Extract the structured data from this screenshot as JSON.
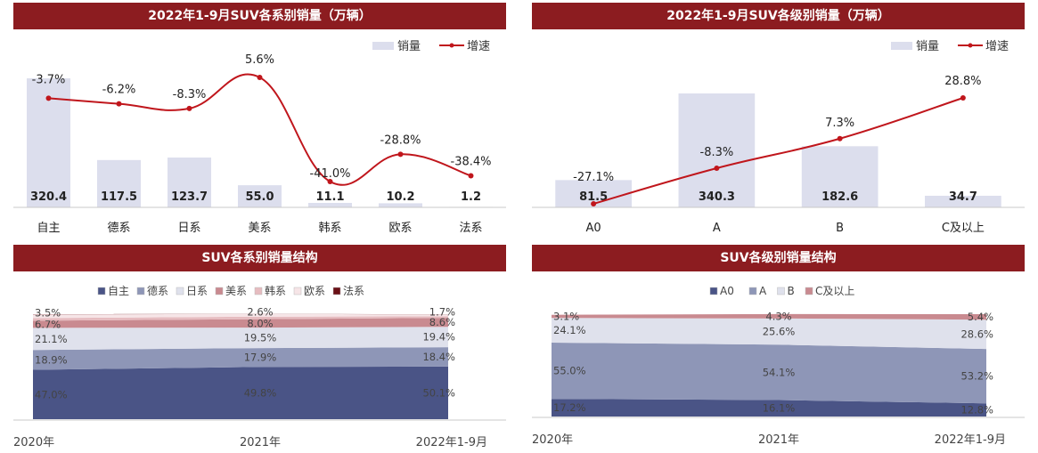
{
  "colors": {
    "header": "#8c1c20",
    "bar": "#dcdeed",
    "line": "#c0161c"
  },
  "legend_bar": "销量",
  "legend_line": "增速",
  "chart_data": [
    {
      "type": "bar",
      "title": "2022年1-9月SUV各系别销量（万辆）",
      "categories": [
        "自主",
        "德系",
        "日系",
        "美系",
        "韩系",
        "欧系",
        "法系"
      ],
      "series": [
        {
          "name": "销量",
          "values": [
            320.4,
            117.5,
            123.7,
            55.0,
            11.1,
            10.2,
            1.2
          ]
        },
        {
          "name": "增速",
          "type": "line",
          "values": [
            -3.7,
            -6.2,
            -8.3,
            5.6,
            -41.0,
            -28.8,
            -38.4
          ]
        }
      ],
      "value_labels": [
        "320.4",
        "117.5",
        "123.7",
        "55.0",
        "11.1",
        "10.2",
        "1.2"
      ],
      "growth_labels": [
        "-3.7%",
        "-6.2%",
        "-8.3%",
        "5.6%",
        "-41.0%",
        "-28.8%",
        "-38.4%"
      ],
      "legend": "top-right"
    },
    {
      "type": "bar",
      "title": "2022年1-9月SUV各级别销量（万辆）",
      "categories": [
        "A0",
        "A",
        "B",
        "C及以上"
      ],
      "series": [
        {
          "name": "销量",
          "values": [
            81.5,
            340.3,
            182.6,
            34.7
          ]
        },
        {
          "name": "增速",
          "type": "line",
          "values": [
            -27.1,
            -8.3,
            7.3,
            28.8
          ]
        }
      ],
      "value_labels": [
        "81.5",
        "340.3",
        "182.6",
        "34.7"
      ],
      "growth_labels": [
        "-27.1%",
        "-8.3%",
        "7.3%",
        "28.8%"
      ],
      "legend": "top-right"
    },
    {
      "type": "area",
      "title": "SUV各系别销量结构",
      "x": [
        "2020年",
        "2021年",
        "2022年1-9月"
      ],
      "series": [
        {
          "name": "自主",
          "color": "#4a5486",
          "values": [
            47.0,
            49.8,
            50.1
          ],
          "labels": [
            "47.0%",
            "49.8%",
            "50.1%"
          ]
        },
        {
          "name": "德系",
          "color": "#8e96b7",
          "values": [
            18.9,
            17.9,
            18.4
          ],
          "labels": [
            "18.9%",
            "17.9%",
            "18.4%"
          ]
        },
        {
          "name": "日系",
          "color": "#dfe1ec",
          "values": [
            21.1,
            19.5,
            19.4
          ],
          "labels": [
            "21.1%",
            "19.5%",
            "19.4%"
          ]
        },
        {
          "name": "美系",
          "color": "#c98a90",
          "values": [
            6.7,
            8.0,
            8.6
          ],
          "labels": [
            "6.7%",
            "8.0%",
            "8.6%"
          ]
        },
        {
          "name": "韩系",
          "color": "#e6bcc0",
          "values": [
            2.6,
            2.4,
            1.5
          ],
          "labels": []
        },
        {
          "name": "欧系",
          "color": "#f6e5e7",
          "values": [
            3.5,
            2.6,
            1.7
          ],
          "labels": [
            "3.5%",
            "2.6%",
            "1.7%"
          ]
        },
        {
          "name": "法系",
          "color": "#6a1016",
          "values": [
            0.2,
            0.1,
            0.1
          ],
          "labels": []
        }
      ],
      "legend": "top"
    },
    {
      "type": "area",
      "title": "SUV各级别销量结构",
      "x": [
        "2020年",
        "2021年",
        "2022年1-9月"
      ],
      "series": [
        {
          "name": "A0",
          "color": "#4a5486",
          "values": [
            17.2,
            16.1,
            12.8
          ],
          "labels": [
            "17.2%",
            "16.1%",
            "12.8%"
          ]
        },
        {
          "name": "A",
          "color": "#8e96b7",
          "values": [
            55.0,
            54.1,
            53.2
          ],
          "labels": [
            "55.0%",
            "54.1%",
            "53.2%"
          ]
        },
        {
          "name": "B",
          "color": "#dfe1ec",
          "values": [
            24.1,
            25.6,
            28.6
          ],
          "labels": [
            "24.1%",
            "25.6%",
            "28.6%"
          ]
        },
        {
          "name": "C及以上",
          "color": "#c98a90",
          "values": [
            3.1,
            4.3,
            5.4
          ],
          "labels": [
            "3.1%",
            "4.3%",
            "5.4%"
          ]
        }
      ],
      "legend": "top"
    }
  ]
}
